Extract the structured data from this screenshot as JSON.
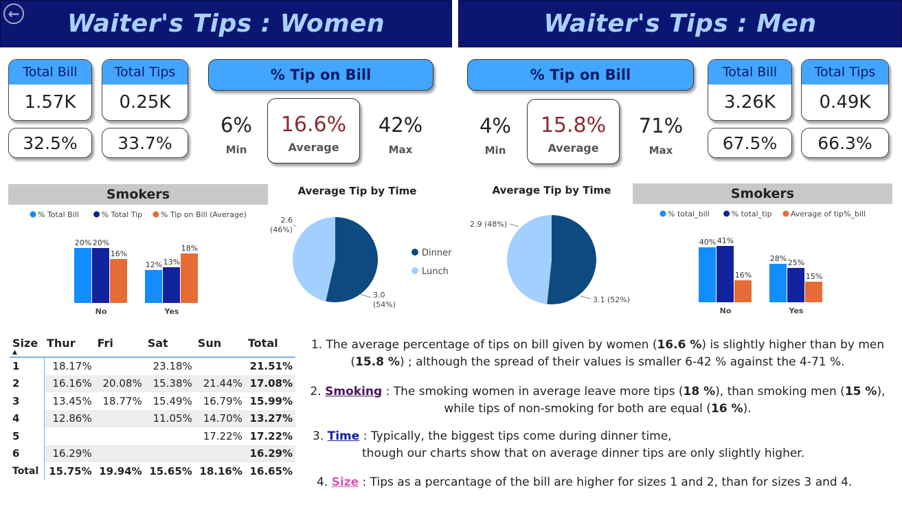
{
  "women": {
    "title": "Waiter's Tips  :  Women",
    "total_bill": {
      "label": "Total Bill",
      "value": "1.57K",
      "pct": "32.5%"
    },
    "total_tips": {
      "label": "Total Tips",
      "value": "0.25K",
      "pct": "33.7%"
    },
    "tip_on_bill": {
      "label": "% Tip on Bill",
      "min": "6%",
      "min_label": "Min",
      "avg": "16.6%",
      "avg_label": "Average",
      "max": "42%",
      "max_label": "Max"
    }
  },
  "men": {
    "title": "Waiter's Tips  :  Men",
    "total_bill": {
      "label": "Total Bill",
      "value": "3.26K",
      "pct": "67.5%"
    },
    "total_tips": {
      "label": "Total Tips",
      "value": "0.49K",
      "pct": "66.3%"
    },
    "tip_on_bill": {
      "label": "% Tip on Bill",
      "min": "4%",
      "min_label": "Min",
      "avg": "15.8%",
      "avg_label": "Average",
      "max": "71%",
      "max_label": "Max"
    }
  },
  "colors": {
    "bill": "#118dff",
    "tip": "#12239e",
    "avg": "#e66c37",
    "dinner": "#0d4a80",
    "lunch": "#a3cfff"
  },
  "chart_data": [
    {
      "type": "bar",
      "title": "Smokers",
      "categories": [
        "No",
        "Yes"
      ],
      "series": [
        {
          "name": "% Total Bill",
          "values": [
            20,
            12
          ],
          "labels": [
            "20%",
            "12%"
          ]
        },
        {
          "name": "% Total Tip",
          "values": [
            20,
            13
          ],
          "labels": [
            "20%",
            "13%"
          ]
        },
        {
          "name": "% Tip on Bill (Average)",
          "values": [
            16,
            18
          ],
          "labels": [
            "16%",
            "18%"
          ]
        }
      ],
      "ylim": [
        0,
        21
      ],
      "legend": "top"
    },
    {
      "type": "pie",
      "title": "Average Tip by Time",
      "slices": [
        {
          "name": "Dinner",
          "value": 3.0,
          "label": "3.0",
          "pct": "(54%)"
        },
        {
          "name": "Lunch",
          "value": 2.6,
          "label": "2.6",
          "pct": "(46%)"
        }
      ],
      "legend": "right"
    },
    {
      "type": "pie",
      "title": "Average Tip by Time",
      "slices": [
        {
          "name": "Dinner",
          "value": 3.1,
          "label": "3.1 (52%)"
        },
        {
          "name": "Lunch",
          "value": 2.9,
          "label": "2.9 (48%)"
        }
      ]
    },
    {
      "type": "bar",
      "title": "Smokers",
      "categories": [
        "No",
        "Yes"
      ],
      "series": [
        {
          "name": "% total_bill",
          "values": [
            40,
            28
          ],
          "labels": [
            "40%",
            "28%"
          ]
        },
        {
          "name": "% total_tip",
          "values": [
            41,
            25
          ],
          "labels": [
            "41%",
            "25%"
          ]
        },
        {
          "name": "Average of tip%_bill",
          "values": [
            16,
            15
          ],
          "labels": [
            "16%",
            "15%"
          ]
        }
      ],
      "ylim": [
        0,
        41
      ],
      "legend": "top"
    },
    {
      "type": "table",
      "columns": [
        "Size",
        "Thur",
        "Fri",
        "Sat",
        "Sun",
        "Total"
      ],
      "rows": [
        [
          "1",
          "18.17%",
          "",
          "23.18%",
          "",
          "21.51%"
        ],
        [
          "2",
          "16.16%",
          "20.08%",
          "15.38%",
          "21.44%",
          "17.08%"
        ],
        [
          "3",
          "13.45%",
          "18.77%",
          "15.49%",
          "16.79%",
          "15.99%"
        ],
        [
          "4",
          "12.86%",
          "",
          "11.05%",
          "14.70%",
          "13.27%"
        ],
        [
          "5",
          "",
          "",
          "",
          "17.22%",
          "17.22%"
        ],
        [
          "6",
          "16.29%",
          "",
          "",
          "",
          "16.29%"
        ]
      ],
      "footer": [
        "Total",
        "15.75%",
        "19.94%",
        "15.65%",
        "18.16%",
        "16.65%"
      ]
    }
  ],
  "notes": {
    "n1_a": "1.  The average percentage of tips on bill given by women (",
    "n1_b": "16.6 %",
    "n1_c": ") is slightly higher than by men",
    "n1_d": "(",
    "n1_e": "15.8 %",
    "n1_f": ") ; although the spread of their values is smaller 6-42 % against the 4-71 %.",
    "n2_num": "2.  ",
    "n2_kw": "Smoking",
    "n2_a": " : The smoking women in average leave more tips (",
    "n2_b": "18 %",
    "n2_c": "), than smoking men (",
    "n2_d": "15 %",
    "n2_e": "),",
    "n2_f": "while tips of non-smoking for both are equal (",
    "n2_g": "16 %",
    "n2_h": ").",
    "n3_num": "3.  ",
    "n3_kw": "Time",
    "n3_a": " : Typically, the biggest tips come during dinner time,",
    "n3_b": "though our charts show that on average dinner tips are only slightly higher.",
    "n4_num": "4.  ",
    "n4_kw": "Size",
    "n4_a": " :    Tips as a percantage of the bill are higher for sizes 1 and 2, than for sizes 3 and 4."
  }
}
